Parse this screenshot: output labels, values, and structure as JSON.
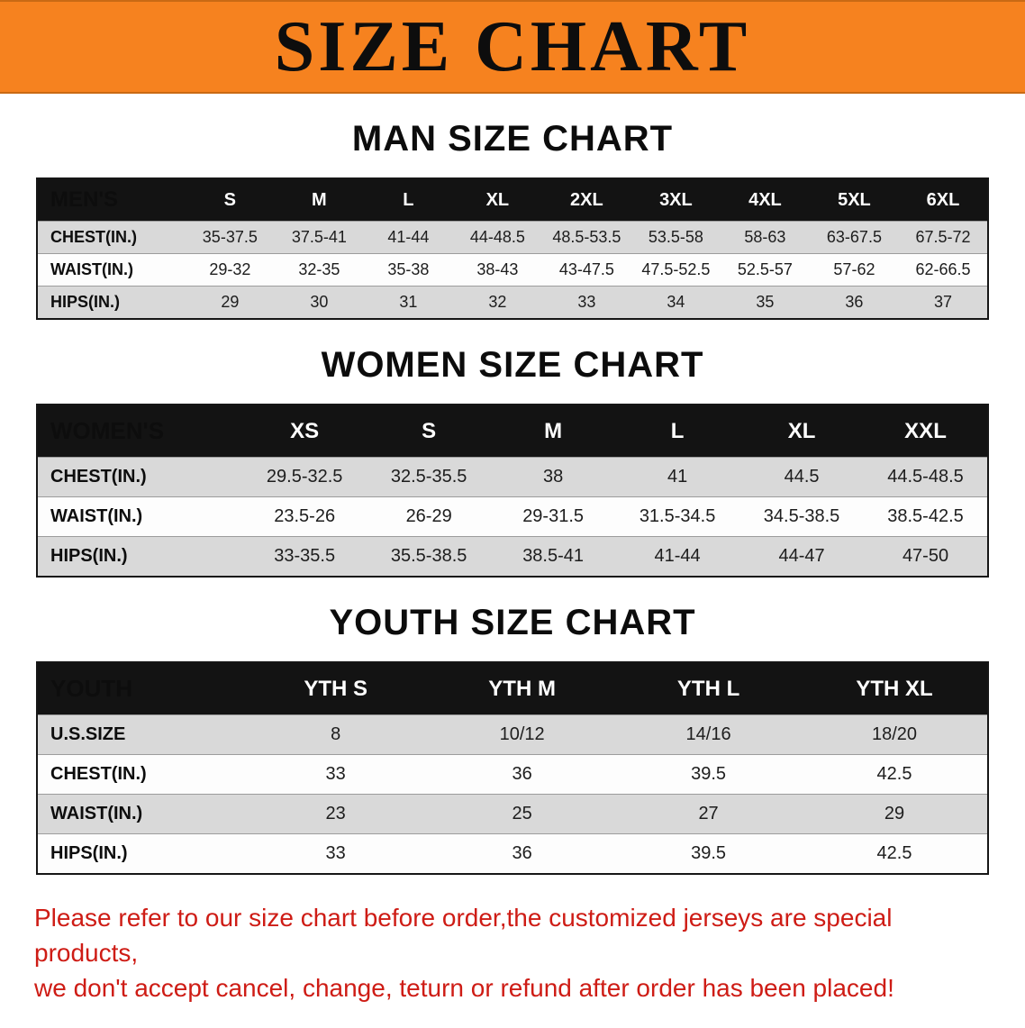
{
  "banner": {
    "title": "SIZE CHART"
  },
  "colors": {
    "banner_bg": "#f6821f",
    "table_header_bg": "#131313",
    "row_stripe": "#d9d9d9",
    "footer_text": "#ce1c15"
  },
  "chart_data": [
    {
      "type": "table",
      "title": "MAN SIZE CHART",
      "columns": [
        "MEN'S",
        "S",
        "M",
        "L",
        "XL",
        "2XL",
        "3XL",
        "4XL",
        "5XL",
        "6XL"
      ],
      "rows": [
        {
          "label": "CHEST(IN.)",
          "values": [
            "35-37.5",
            "37.5-41",
            "41-44",
            "44-48.5",
            "48.5-53.5",
            "53.5-58",
            "58-63",
            "63-67.5",
            "67.5-72"
          ]
        },
        {
          "label": "WAIST(IN.)",
          "values": [
            "29-32",
            "32-35",
            "35-38",
            "38-43",
            "43-47.5",
            "47.5-52.5",
            "52.5-57",
            "57-62",
            "62-66.5"
          ]
        },
        {
          "label": "HIPS(IN.)",
          "values": [
            "29",
            "30",
            "31",
            "32",
            "33",
            "34",
            "35",
            "36",
            "37"
          ]
        }
      ]
    },
    {
      "type": "table",
      "title": "WOMEN SIZE CHART",
      "columns": [
        "WOMEN'S",
        "XS",
        "S",
        "M",
        "L",
        "XL",
        "XXL"
      ],
      "rows": [
        {
          "label": "CHEST(IN.)",
          "values": [
            "29.5-32.5",
            "32.5-35.5",
            "38",
            "41",
            "44.5",
            "44.5-48.5"
          ]
        },
        {
          "label": "WAIST(IN.)",
          "values": [
            "23.5-26",
            "26-29",
            "29-31.5",
            "31.5-34.5",
            "34.5-38.5",
            "38.5-42.5"
          ]
        },
        {
          "label": "HIPS(IN.)",
          "values": [
            "33-35.5",
            "35.5-38.5",
            "38.5-41",
            "41-44",
            "44-47",
            "47-50"
          ]
        }
      ]
    },
    {
      "type": "table",
      "title": "YOUTH SIZE CHART",
      "columns": [
        "YOUTH",
        "YTH S",
        "YTH M",
        "YTH L",
        "YTH XL"
      ],
      "rows": [
        {
          "label": "U.S.SIZE",
          "values": [
            "8",
            "10/12",
            "14/16",
            "18/20"
          ]
        },
        {
          "label": "CHEST(IN.)",
          "values": [
            "33",
            "36",
            "39.5",
            "42.5"
          ]
        },
        {
          "label": "WAIST(IN.)",
          "values": [
            "23",
            "25",
            "27",
            "29"
          ]
        },
        {
          "label": "HIPS(IN.)",
          "values": [
            "33",
            "36",
            "39.5",
            "42.5"
          ]
        }
      ]
    }
  ],
  "footer": {
    "lines": [
      "Please refer to our size chart before order,the customized jerseys are special products,",
      "we don't accept cancel, change, teturn or refund after order has been placed!"
    ]
  }
}
